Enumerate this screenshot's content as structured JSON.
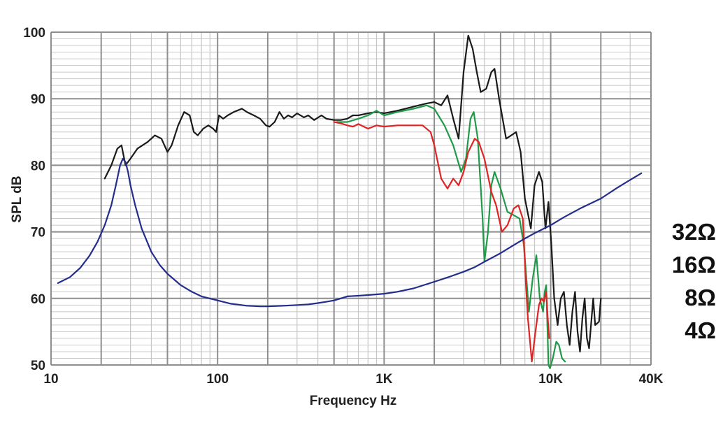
{
  "chart_data": {
    "type": "line",
    "xlabel": "Frequency Hz",
    "ylabel": "SPL dB",
    "x_scale": "log",
    "xlim": [
      10,
      40000
    ],
    "ylim": [
      50,
      100
    ],
    "grid": true,
    "x_ticks": [
      {
        "value": 10,
        "label": "10"
      },
      {
        "value": 100,
        "label": "100"
      },
      {
        "value": 1000,
        "label": "1K"
      },
      {
        "value": 10000,
        "label": "10K"
      },
      {
        "value": 40000,
        "label": "40K"
      }
    ],
    "y_ticks": [
      {
        "value": 50,
        "label": "50"
      },
      {
        "value": 60,
        "label": "60"
      },
      {
        "value": 70,
        "label": "70"
      },
      {
        "value": 80,
        "label": "80"
      },
      {
        "value": 90,
        "label": "90"
      },
      {
        "value": 100,
        "label": "100"
      }
    ],
    "impedance_labels": [
      "32Ω",
      "16Ω",
      "8Ω",
      "4Ω"
    ],
    "series": [
      {
        "color": "#1a1a1a",
        "points": [
          [
            21,
            78
          ],
          [
            23,
            80
          ],
          [
            25,
            82.5
          ],
          [
            26.5,
            83
          ],
          [
            28,
            80
          ],
          [
            30,
            81
          ],
          [
            33,
            82.5
          ],
          [
            38,
            83.5
          ],
          [
            42,
            84.5
          ],
          [
            46,
            84
          ],
          [
            50,
            82
          ],
          [
            53,
            83
          ],
          [
            58,
            86
          ],
          [
            63,
            88
          ],
          [
            68,
            87.5
          ],
          [
            72,
            85
          ],
          [
            76,
            84.5
          ],
          [
            82,
            85.5
          ],
          [
            88,
            86
          ],
          [
            94,
            85.5
          ],
          [
            98,
            85
          ],
          [
            102,
            87.5
          ],
          [
            108,
            87
          ],
          [
            115,
            87.5
          ],
          [
            125,
            88
          ],
          [
            140,
            88.5
          ],
          [
            150,
            88
          ],
          [
            165,
            87.5
          ],
          [
            180,
            87
          ],
          [
            195,
            86
          ],
          [
            205,
            85.8
          ],
          [
            220,
            86.5
          ],
          [
            235,
            88
          ],
          [
            250,
            87
          ],
          [
            265,
            87.5
          ],
          [
            280,
            87.2
          ],
          [
            300,
            87.8
          ],
          [
            330,
            87.2
          ],
          [
            350,
            87.5
          ],
          [
            380,
            86.8
          ],
          [
            420,
            87.5
          ],
          [
            450,
            87
          ],
          [
            500,
            86.8
          ],
          [
            550,
            86.8
          ],
          [
            600,
            87
          ],
          [
            650,
            87.5
          ],
          [
            700,
            87.5
          ],
          [
            800,
            87.8
          ],
          [
            900,
            88
          ],
          [
            1000,
            87.8
          ],
          [
            1200,
            88.2
          ],
          [
            1500,
            88.8
          ],
          [
            1800,
            89.3
          ],
          [
            2000,
            89.5
          ],
          [
            2200,
            89
          ],
          [
            2400,
            90.5
          ],
          [
            2600,
            87
          ],
          [
            2800,
            84
          ],
          [
            3000,
            94
          ],
          [
            3200,
            99.5
          ],
          [
            3400,
            97.5
          ],
          [
            3600,
            94
          ],
          [
            3800,
            91
          ],
          [
            4100,
            91.5
          ],
          [
            4400,
            94
          ],
          [
            4600,
            94.5
          ],
          [
            4900,
            90
          ],
          [
            5400,
            84
          ],
          [
            5800,
            84.5
          ],
          [
            6200,
            85
          ],
          [
            6600,
            82
          ],
          [
            7000,
            75
          ],
          [
            7400,
            72
          ],
          [
            7600,
            70.5
          ],
          [
            8000,
            77
          ],
          [
            8500,
            79
          ],
          [
            8900,
            77.5
          ],
          [
            9300,
            70.5
          ],
          [
            9700,
            74.5
          ],
          [
            10100,
            68
          ],
          [
            10500,
            60
          ],
          [
            11000,
            56
          ],
          [
            11500,
            60
          ],
          [
            12000,
            61
          ],
          [
            12500,
            56
          ],
          [
            13000,
            53
          ],
          [
            13500,
            58
          ],
          [
            14000,
            61
          ],
          [
            14500,
            55
          ],
          [
            15000,
            52
          ],
          [
            15500,
            57
          ],
          [
            16000,
            60
          ],
          [
            16500,
            54
          ],
          [
            17000,
            52.5
          ],
          [
            18000,
            60
          ],
          [
            18500,
            56
          ],
          [
            19500,
            56.5
          ],
          [
            20000,
            60
          ]
        ]
      },
      {
        "color": "#1f9a48",
        "points": [
          [
            520,
            86.5
          ],
          [
            600,
            86.5
          ],
          [
            700,
            87
          ],
          [
            800,
            87.5
          ],
          [
            900,
            88.2
          ],
          [
            1000,
            87.5
          ],
          [
            1200,
            88
          ],
          [
            1500,
            88.5
          ],
          [
            1800,
            89
          ],
          [
            2000,
            88.5
          ],
          [
            2300,
            86
          ],
          [
            2600,
            83
          ],
          [
            2900,
            79
          ],
          [
            3100,
            81
          ],
          [
            3300,
            87
          ],
          [
            3450,
            88
          ],
          [
            3650,
            84
          ],
          [
            3900,
            72
          ],
          [
            4000,
            65.5
          ],
          [
            4200,
            70
          ],
          [
            4400,
            77
          ],
          [
            4600,
            79
          ],
          [
            5000,
            76.5
          ],
          [
            5500,
            73
          ],
          [
            6000,
            72.5
          ],
          [
            6500,
            72
          ],
          [
            6900,
            68
          ],
          [
            7200,
            62
          ],
          [
            7400,
            58
          ],
          [
            7800,
            63
          ],
          [
            8200,
            66.5
          ],
          [
            8600,
            60
          ],
          [
            9000,
            58
          ],
          [
            9200,
            61
          ],
          [
            9400,
            62
          ],
          [
            9700,
            50
          ],
          [
            9900,
            49.5
          ],
          [
            10300,
            51
          ],
          [
            10800,
            53.5
          ],
          [
            11200,
            53
          ],
          [
            11700,
            51
          ],
          [
            12200,
            50.5
          ]
        ]
      },
      {
        "color": "#e02323",
        "points": [
          [
            500,
            86.5
          ],
          [
            550,
            86.3
          ],
          [
            600,
            86
          ],
          [
            650,
            85.8
          ],
          [
            700,
            86.2
          ],
          [
            800,
            85.5
          ],
          [
            900,
            86
          ],
          [
            1000,
            85.8
          ],
          [
            1200,
            86
          ],
          [
            1400,
            86
          ],
          [
            1700,
            86
          ],
          [
            1900,
            85
          ],
          [
            2000,
            83
          ],
          [
            2200,
            78
          ],
          [
            2400,
            76.5
          ],
          [
            2600,
            78
          ],
          [
            2800,
            77
          ],
          [
            3000,
            79
          ],
          [
            3200,
            82
          ],
          [
            3500,
            84
          ],
          [
            3700,
            83.5
          ],
          [
            4000,
            81
          ],
          [
            4400,
            76
          ],
          [
            4700,
            74
          ],
          [
            5100,
            70
          ],
          [
            5500,
            71
          ],
          [
            6000,
            73.5
          ],
          [
            6400,
            74
          ],
          [
            6800,
            72
          ],
          [
            7100,
            62
          ],
          [
            7300,
            57
          ],
          [
            7700,
            50.5
          ],
          [
            8100,
            55
          ],
          [
            8500,
            59
          ],
          [
            8800,
            60
          ],
          [
            9100,
            59.5
          ],
          [
            9400,
            61
          ],
          [
            9600,
            57
          ],
          [
            9800,
            54
          ]
        ]
      },
      {
        "color": "#232d8c",
        "points": [
          [
            11,
            62.3
          ],
          [
            13,
            63.2
          ],
          [
            15,
            64.6
          ],
          [
            17,
            66.4
          ],
          [
            19,
            68.5
          ],
          [
            21,
            71
          ],
          [
            23,
            74
          ],
          [
            24.5,
            77
          ],
          [
            26,
            80
          ],
          [
            27,
            81
          ],
          [
            28,
            80.5
          ],
          [
            29,
            79
          ],
          [
            30,
            77
          ],
          [
            32,
            74
          ],
          [
            35,
            70.5
          ],
          [
            40,
            67
          ],
          [
            45,
            65
          ],
          [
            50,
            63.7
          ],
          [
            60,
            62
          ],
          [
            70,
            61
          ],
          [
            80,
            60.3
          ],
          [
            100,
            59.7
          ],
          [
            120,
            59.2
          ],
          [
            150,
            58.9
          ],
          [
            180,
            58.8
          ],
          [
            200,
            58.8
          ],
          [
            250,
            58.9
          ],
          [
            300,
            59
          ],
          [
            350,
            59.1
          ],
          [
            400,
            59.3
          ],
          [
            450,
            59.5
          ],
          [
            500,
            59.7
          ],
          [
            550,
            60
          ],
          [
            600,
            60.3
          ],
          [
            700,
            60.4
          ],
          [
            800,
            60.5
          ],
          [
            1000,
            60.7
          ],
          [
            1200,
            61
          ],
          [
            1500,
            61.5
          ],
          [
            2000,
            62.5
          ],
          [
            2500,
            63.3
          ],
          [
            3000,
            64
          ],
          [
            3500,
            64.7
          ],
          [
            4000,
            65.5
          ],
          [
            5000,
            66.8
          ],
          [
            6000,
            68
          ],
          [
            7000,
            69
          ],
          [
            8000,
            69.8
          ],
          [
            10000,
            71
          ],
          [
            12000,
            72.2
          ],
          [
            15000,
            73.5
          ],
          [
            20000,
            75
          ],
          [
            25000,
            76.6
          ],
          [
            30000,
            77.8
          ],
          [
            35000,
            78.8
          ]
        ]
      }
    ]
  }
}
